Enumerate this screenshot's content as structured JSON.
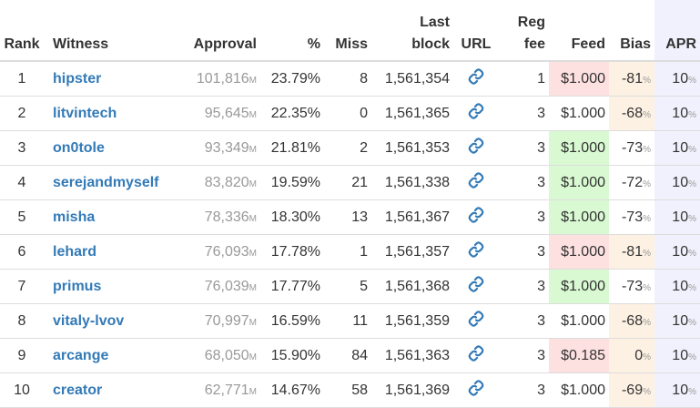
{
  "table": {
    "headers": [
      "Rank",
      "Witness",
      "Approval",
      "%",
      "Miss",
      "Last block",
      "URL",
      "Reg fee",
      "Feed",
      "Bias",
      "APR"
    ],
    "rows": [
      {
        "rank": "1",
        "witness": "hipster",
        "approval": "101,816",
        "approval_unit": "M",
        "percent": "23.79%",
        "miss": "8",
        "last_block": "1,561,354",
        "reg_fee": "1",
        "feed": "$1.000",
        "feed_color": "#fde0e0",
        "bias": "-81",
        "bias_unit": "%",
        "bias_color": "#fdf1e3",
        "apr": "10",
        "apr_unit": "%"
      },
      {
        "rank": "2",
        "witness": "litvintech",
        "approval": "95,645",
        "approval_unit": "M",
        "percent": "22.35%",
        "miss": "0",
        "last_block": "1,561,365",
        "reg_fee": "3",
        "feed": "$1.000",
        "feed_color": "#ffffff",
        "bias": "-68",
        "bias_unit": "%",
        "bias_color": "#fdf1e3",
        "apr": "10",
        "apr_unit": "%"
      },
      {
        "rank": "3",
        "witness": "on0tole",
        "approval": "93,349",
        "approval_unit": "M",
        "percent": "21.81%",
        "miss": "2",
        "last_block": "1,561,353",
        "reg_fee": "3",
        "feed": "$1.000",
        "feed_color": "#d9f9d2",
        "bias": "-73",
        "bias_unit": "%",
        "bias_color": "#ffffff",
        "apr": "10",
        "apr_unit": "%"
      },
      {
        "rank": "4",
        "witness": "serejandmyself",
        "approval": "83,820",
        "approval_unit": "M",
        "percent": "19.59%",
        "miss": "21",
        "last_block": "1,561,338",
        "reg_fee": "3",
        "feed": "$1.000",
        "feed_color": "#d9f9d2",
        "bias": "-72",
        "bias_unit": "%",
        "bias_color": "#ffffff",
        "apr": "10",
        "apr_unit": "%"
      },
      {
        "rank": "5",
        "witness": "misha",
        "approval": "78,336",
        "approval_unit": "M",
        "percent": "18.30%",
        "miss": "13",
        "last_block": "1,561,367",
        "reg_fee": "3",
        "feed": "$1.000",
        "feed_color": "#d9f9d2",
        "bias": "-73",
        "bias_unit": "%",
        "bias_color": "#ffffff",
        "apr": "10",
        "apr_unit": "%"
      },
      {
        "rank": "6",
        "witness": "lehard",
        "approval": "76,093",
        "approval_unit": "M",
        "percent": "17.78%",
        "miss": "1",
        "last_block": "1,561,357",
        "reg_fee": "3",
        "feed": "$1.000",
        "feed_color": "#fde0e0",
        "bias": "-81",
        "bias_unit": "%",
        "bias_color": "#fdf1e3",
        "apr": "10",
        "apr_unit": "%"
      },
      {
        "rank": "7",
        "witness": "primus",
        "approval": "76,039",
        "approval_unit": "M",
        "percent": "17.77%",
        "miss": "5",
        "last_block": "1,561,368",
        "reg_fee": "3",
        "feed": "$1.000",
        "feed_color": "#d9f9d2",
        "bias": "-73",
        "bias_unit": "%",
        "bias_color": "#ffffff",
        "apr": "10",
        "apr_unit": "%"
      },
      {
        "rank": "8",
        "witness": "vitaly-lvov",
        "approval": "70,997",
        "approval_unit": "M",
        "percent": "16.59%",
        "miss": "11",
        "last_block": "1,561,359",
        "reg_fee": "3",
        "feed": "$1.000",
        "feed_color": "#ffffff",
        "bias": "-68",
        "bias_unit": "%",
        "bias_color": "#fdf1e3",
        "apr": "10",
        "apr_unit": "%"
      },
      {
        "rank": "9",
        "witness": "arcange",
        "approval": "68,050",
        "approval_unit": "M",
        "percent": "15.90%",
        "miss": "84",
        "last_block": "1,561,363",
        "reg_fee": "3",
        "feed": "$0.185",
        "feed_color": "#fde0e0",
        "bias": "0",
        "bias_unit": "%",
        "bias_color": "#fdf1e3",
        "apr": "10",
        "apr_unit": "%"
      },
      {
        "rank": "10",
        "witness": "creator",
        "approval": "62,771",
        "approval_unit": "M",
        "percent": "14.67%",
        "miss": "58",
        "last_block": "1,561,369",
        "reg_fee": "3",
        "feed": "$1.000",
        "feed_color": "#ffffff",
        "bias": "-69",
        "bias_unit": "%",
        "bias_color": "#fdf1e3",
        "apr": "10",
        "apr_unit": "%"
      }
    ]
  }
}
